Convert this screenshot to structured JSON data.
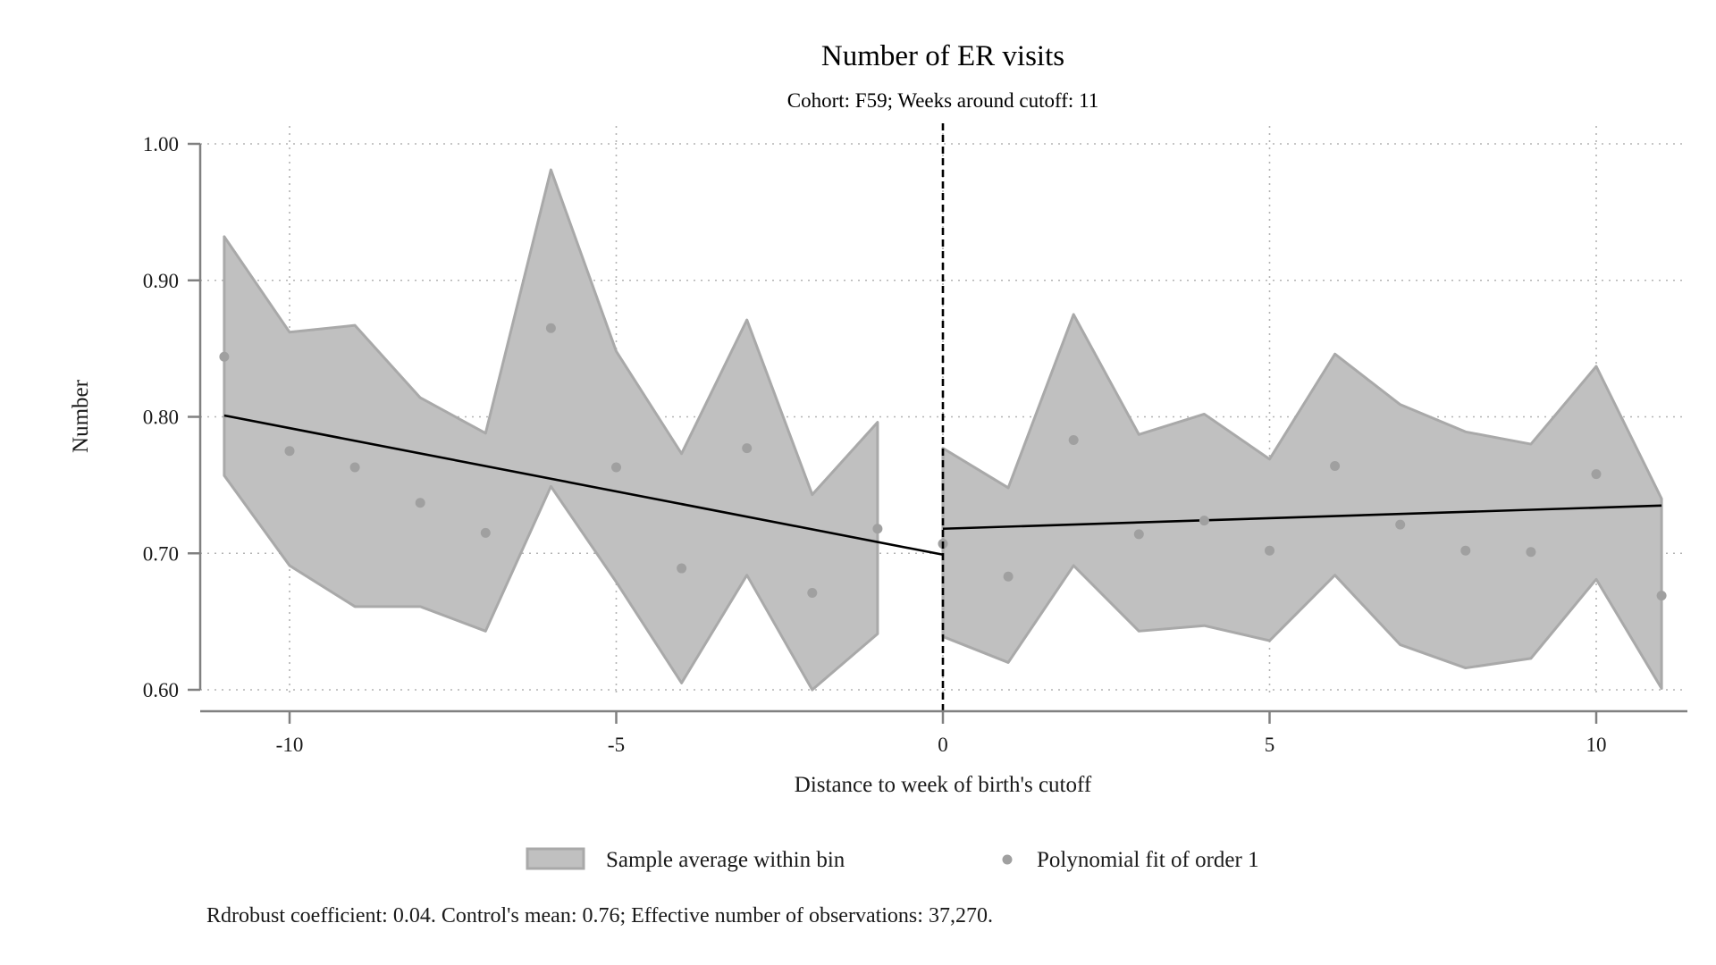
{
  "chart_data": {
    "type": "line",
    "title": "Number of ER visits",
    "subtitle": "Cohort: F59; Weeks around cutoff: 11",
    "xlabel": "Distance to week of birth's cutoff",
    "ylabel": "Number",
    "xlim": [
      -11.5,
      11.5
    ],
    "ylim": [
      0.6,
      1.0
    ],
    "x_ticks": [
      -10,
      -5,
      0,
      5,
      10
    ],
    "x_tick_labels": [
      "-10",
      "-5",
      "0",
      "5",
      "10"
    ],
    "y_ticks": [
      0.6,
      0.7,
      0.8,
      0.9,
      1.0
    ],
    "y_tick_labels": [
      "0.60",
      "0.70",
      "0.80",
      "0.90",
      "1.00"
    ],
    "grid": true,
    "cutoff_line_x": 0,
    "legend_position": "bottom",
    "legend": {
      "band_label": "Sample average within bin",
      "points_label": "Polynomial fit of order 1"
    },
    "note": "Rdrobust coefficient: 0.04. Control's mean: 0.76; Effective number of observations: 37,270.",
    "colors": {
      "band_fill": "#c0c0c0",
      "band_edge": "#a9a9a9",
      "points": "#a0a0a0",
      "fit_line": "#000000",
      "axis": "#808080",
      "grid": "#b3b3b3"
    },
    "band_left": {
      "x": [
        -11,
        -10,
        -9,
        -8,
        -7,
        -6,
        -5,
        -4,
        -3,
        -2,
        -1
      ],
      "upper": [
        0.932,
        0.862,
        0.867,
        0.814,
        0.788,
        0.981,
        0.848,
        0.773,
        0.871,
        0.743,
        0.796
      ],
      "lower": [
        0.757,
        0.691,
        0.661,
        0.661,
        0.643,
        0.749,
        0.679,
        0.605,
        0.684,
        0.6,
        0.641
      ]
    },
    "band_right": {
      "x": [
        0,
        1,
        2,
        3,
        4,
        5,
        6,
        7,
        8,
        9,
        10,
        11
      ],
      "upper": [
        0.777,
        0.748,
        0.875,
        0.787,
        0.802,
        0.769,
        0.846,
        0.809,
        0.789,
        0.78,
        0.837,
        0.74
      ],
      "lower": [
        0.639,
        0.62,
        0.691,
        0.643,
        0.647,
        0.636,
        0.684,
        0.633,
        0.616,
        0.623,
        0.681,
        0.601
      ]
    },
    "points": {
      "x": [
        -11,
        -10,
        -9,
        -8,
        -7,
        -6,
        -5,
        -4,
        -3,
        -2,
        -1,
        0,
        1,
        2,
        3,
        4,
        5,
        6,
        7,
        8,
        9,
        10,
        11
      ],
      "y": [
        0.844,
        0.775,
        0.763,
        0.737,
        0.715,
        0.865,
        0.763,
        0.689,
        0.777,
        0.671,
        0.718,
        0.707,
        0.683,
        0.783,
        0.714,
        0.724,
        0.702,
        0.764,
        0.721,
        0.702,
        0.701,
        0.758,
        0.669
      ]
    },
    "fit_left": {
      "x": [
        -11,
        0
      ],
      "y": [
        0.801,
        0.699
      ]
    },
    "fit_right": {
      "x": [
        0,
        11
      ],
      "y": [
        0.718,
        0.735
      ]
    }
  }
}
